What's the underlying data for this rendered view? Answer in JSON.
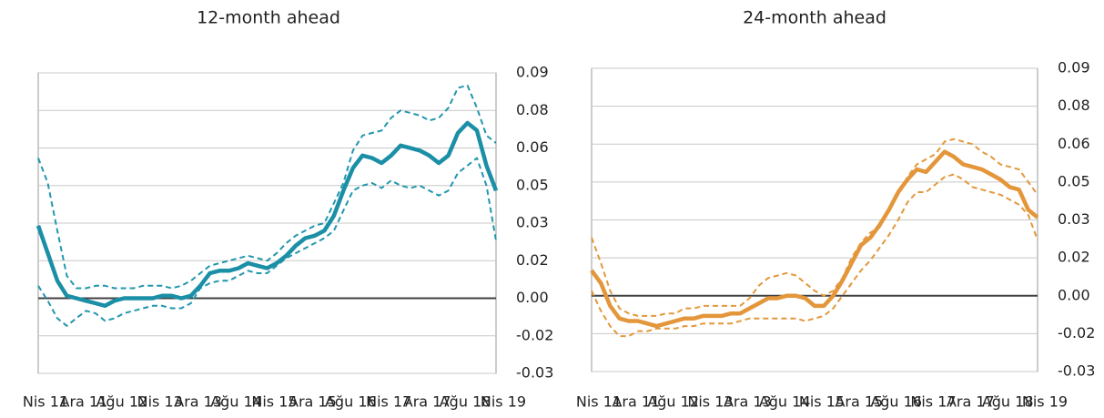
{
  "chart_data": [
    {
      "type": "line",
      "title": "12-month ahead",
      "categories": [
        "Nis 11",
        null,
        null,
        null,
        "Ara 11",
        null,
        null,
        null,
        "Ağu 12",
        null,
        null,
        null,
        "Nis 13",
        null,
        null,
        null,
        "Ara 13",
        null,
        null,
        null,
        "Ağu 14",
        null,
        null,
        null,
        "Nis 15",
        null,
        null,
        null,
        "Ara 15",
        null,
        null,
        null,
        "Ağu 16",
        null,
        null,
        null,
        "Nis 17",
        null,
        null,
        null,
        "Ara 17",
        null,
        null,
        null,
        "Ağu 18",
        null,
        null,
        null,
        "Nis 19"
      ],
      "ylim": [
        -0.03,
        0.09
      ],
      "yticks": [
        -0.03,
        {
          "value": -0.015,
          "label": "-0.02"
        },
        {
          "value": 0,
          "label": "0.00"
        },
        {
          "value": 0.015,
          "label": "0.02"
        },
        0.03,
        {
          "value": 0.045,
          "label": "0.05"
        },
        0.06,
        {
          "value": 0.075,
          "label": "0.08"
        },
        0.09
      ],
      "grid": true,
      "yaxis_side": "right",
      "series": [
        {
          "color": "#2196ad",
          "dashed": true,
          "values": [
            0.056,
            0.046,
            0.027,
            0.009,
            0.004,
            0.004,
            0.005,
            0.005,
            0.004,
            0.004,
            0.004,
            0.005,
            0.005,
            0.005,
            0.004,
            0.005,
            0.007,
            0.01,
            0.013,
            0.014,
            0.015,
            0.016,
            0.017,
            0.016,
            0.015,
            0.018,
            0.022,
            0.025,
            0.027,
            0.029,
            0.03,
            0.038,
            0.046,
            0.059,
            0.065,
            0.066,
            0.067,
            0.072,
            0.075,
            0.074,
            0.073,
            0.071,
            0.072,
            0.076,
            0.084,
            0.085,
            0.076,
            0.065,
            0.062
          ]
        },
        {
          "color": "#2196ad",
          "dashed": true,
          "values": [
            0.005,
            -0.001,
            -0.008,
            -0.011,
            -0.008,
            -0.005,
            -0.006,
            -0.009,
            -0.008,
            -0.006,
            -0.005,
            -0.004,
            -0.003,
            -0.003,
            -0.004,
            -0.004,
            -0.002,
            0.004,
            0.006,
            0.007,
            0.007,
            0.009,
            0.011,
            0.01,
            0.01,
            0.013,
            0.016,
            0.018,
            0.02,
            0.022,
            0.024,
            0.027,
            0.035,
            0.043,
            0.045,
            0.046,
            0.044,
            0.047,
            0.045,
            0.044,
            0.045,
            0.043,
            0.041,
            0.043,
            0.05,
            0.053,
            0.056,
            0.045,
            0.023
          ]
        },
        {
          "color": "#1b8fa6",
          "dashed": false,
          "values": [
            0.029,
            0.018,
            0.007,
            0.001,
            0.0,
            -0.001,
            -0.002,
            -0.003,
            -0.001,
            0.0,
            0.0,
            0.0,
            0.0,
            0.001,
            0.001,
            0.0,
            0.001,
            0.005,
            0.01,
            0.011,
            0.011,
            0.012,
            0.014,
            0.013,
            0.012,
            0.014,
            0.017,
            0.021,
            0.024,
            0.025,
            0.027,
            0.033,
            0.043,
            0.052,
            0.057,
            0.056,
            0.054,
            0.057,
            0.061,
            0.06,
            0.059,
            0.057,
            0.054,
            0.057,
            0.066,
            0.07,
            0.067,
            0.053,
            0.043
          ]
        }
      ]
    },
    {
      "type": "line",
      "title": "24-month ahead",
      "categories": [
        "Nis 11",
        null,
        null,
        null,
        "Ara 11",
        null,
        null,
        null,
        "Ağu 12",
        null,
        null,
        null,
        "Nis 13",
        null,
        null,
        null,
        "Ara 13",
        null,
        null,
        null,
        "Ağu 14",
        null,
        null,
        null,
        "Nis 15",
        null,
        null,
        null,
        "Ara 15",
        null,
        null,
        null,
        "Ağu 16",
        null,
        null,
        null,
        "Nis 17",
        null,
        null,
        null,
        "Ara 17",
        null,
        null,
        null,
        "Ağu 18",
        null,
        null,
        null,
        "Nis 19"
      ],
      "ylim": [
        -0.03,
        0.09
      ],
      "yticks": [
        -0.03,
        {
          "value": -0.015,
          "label": "-0.02"
        },
        {
          "value": 0,
          "label": "0.00"
        },
        {
          "value": 0.015,
          "label": "0.02"
        },
        0.03,
        {
          "value": 0.045,
          "label": "0.05"
        },
        0.06,
        {
          "value": 0.075,
          "label": "0.08"
        },
        0.09
      ],
      "grid": true,
      "yaxis_side": "right",
      "series": [
        {
          "color": "#e3983b",
          "dashed": true,
          "values": [
            0.023,
            0.013,
            0.002,
            -0.005,
            -0.007,
            -0.008,
            -0.008,
            -0.008,
            -0.007,
            -0.007,
            -0.005,
            -0.005,
            -0.004,
            -0.004,
            -0.004,
            -0.004,
            -0.004,
            -0.001,
            0.004,
            0.007,
            0.008,
            0.009,
            0.008,
            0.005,
            0.002,
            0.0,
            0.002,
            0.007,
            0.015,
            0.021,
            0.025,
            0.027,
            0.034,
            0.04,
            0.047,
            0.052,
            0.054,
            0.056,
            0.061,
            0.062,
            0.061,
            0.06,
            0.057,
            0.055,
            0.052,
            0.051,
            0.05,
            0.045,
            0.04
          ]
        },
        {
          "color": "#e3983b",
          "dashed": true,
          "values": [
            0.002,
            -0.006,
            -0.012,
            -0.016,
            -0.016,
            -0.014,
            -0.014,
            -0.013,
            -0.013,
            -0.013,
            -0.012,
            -0.012,
            -0.011,
            -0.011,
            -0.011,
            -0.011,
            -0.01,
            -0.009,
            -0.009,
            -0.009,
            -0.009,
            -0.009,
            -0.009,
            -0.01,
            -0.009,
            -0.008,
            -0.005,
            0.0,
            0.005,
            0.01,
            0.014,
            0.019,
            0.024,
            0.03,
            0.037,
            0.041,
            0.041,
            0.044,
            0.047,
            0.048,
            0.046,
            0.043,
            0.042,
            0.041,
            0.04,
            0.038,
            0.036,
            0.032,
            0.022
          ]
        },
        {
          "color": "#e3963a",
          "dashed": false,
          "values": [
            0.01,
            0.005,
            -0.004,
            -0.009,
            -0.01,
            -0.01,
            -0.011,
            -0.012,
            -0.011,
            -0.01,
            -0.009,
            -0.009,
            -0.008,
            -0.008,
            -0.008,
            -0.007,
            -0.007,
            -0.005,
            -0.003,
            -0.001,
            -0.001,
            0.0,
            0.0,
            -0.001,
            -0.004,
            -0.004,
            0.0,
            0.006,
            0.013,
            0.02,
            0.023,
            0.028,
            0.034,
            0.041,
            0.046,
            0.05,
            0.049,
            0.053,
            0.057,
            0.055,
            0.052,
            0.051,
            0.05,
            0.048,
            0.046,
            0.043,
            0.042,
            0.034,
            0.031
          ]
        }
      ]
    }
  ]
}
